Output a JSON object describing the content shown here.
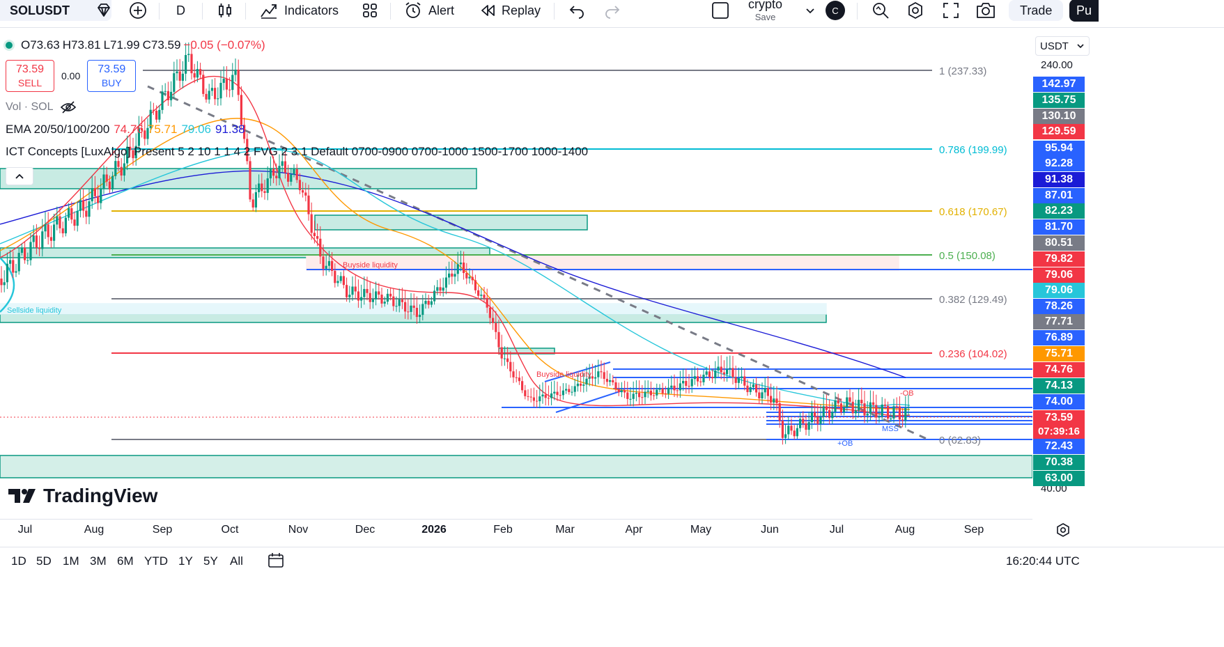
{
  "toolbar": {
    "symbol": "SOLUSDT",
    "interval": "D",
    "indicators_label": "Indicators",
    "alert_label": "Alert",
    "replay_label": "Replay",
    "layout_name": "crypto",
    "layout_save": "Save",
    "avatar_letter": "C",
    "trade_label": "Trade",
    "publish_label": "Pu"
  },
  "legend": {
    "open": "O73.63",
    "high": "H73.81",
    "low": "L71.99",
    "close": "C73.59",
    "change": "−0.05 (−0.07%)",
    "sell_price": "73.59",
    "sell_label": "SELL",
    "spread": "0.00",
    "buy_price": "73.59",
    "buy_label": "BUY",
    "volume": "Vol · SOL",
    "ema_name": "EMA 20/50/100/200",
    "ema_values": [
      "74.76",
      "75.71",
      "79.06",
      "91.38"
    ],
    "ict_text": "ICT Concepts [LuxAlgo] Present 5 2 10 1 1 4 2 FVG 2 3 1 Default 0700-0900 0700-1000 1500-1700 1000-1400"
  },
  "watermark": "TradingView",
  "price_scale": {
    "currency": "USDT",
    "ticks": [
      "240.00",
      "40.00"
    ],
    "labels": [
      {
        "v": "142.97",
        "c": "#2962ff"
      },
      {
        "v": "135.75",
        "c": "#089981"
      },
      {
        "v": "130.10",
        "c": "#787b86"
      },
      {
        "v": "129.59",
        "c": "#f23645"
      },
      {
        "v": "95.94",
        "c": "#2962ff"
      },
      {
        "v": "92.28",
        "c": "#2962ff"
      },
      {
        "v": "91.38",
        "c": "#1b1bd6"
      },
      {
        "v": "87.01",
        "c": "#2962ff"
      },
      {
        "v": "82.23",
        "c": "#089981"
      },
      {
        "v": "81.70",
        "c": "#2962ff"
      },
      {
        "v": "80.51",
        "c": "#787b86"
      },
      {
        "v": "79.82",
        "c": "#f23645"
      },
      {
        "v": "79.06",
        "c": "#f23645"
      },
      {
        "v": "79.06",
        "c": "#26c6da"
      },
      {
        "v": "78.26",
        "c": "#2962ff"
      },
      {
        "v": "77.71",
        "c": "#787b86"
      },
      {
        "v": "76.89",
        "c": "#2962ff"
      },
      {
        "v": "75.71",
        "c": "#ff9800"
      },
      {
        "v": "74.76",
        "c": "#f23645"
      },
      {
        "v": "74.13",
        "c": "#089981"
      },
      {
        "v": "74.00",
        "c": "#2962ff"
      },
      {
        "v": "73.59",
        "c": "#f23645"
      },
      {
        "v": "72.43",
        "c": "#2962ff"
      },
      {
        "v": "70.38",
        "c": "#089981"
      },
      {
        "v": "63.00",
        "c": "#089981"
      }
    ],
    "countdown": "07:39:16"
  },
  "fib_levels": [
    {
      "label": "1 (237.33)",
      "color": "#787b86"
    },
    {
      "label": "0.786 (199.99)",
      "color": "#00bcd4"
    },
    {
      "label": "0.618 (170.67)",
      "color": "#e2b100"
    },
    {
      "label": "0.5 (150.08)",
      "color": "#4caf50"
    },
    {
      "label": "0.382 (129.49)",
      "color": "#787b86"
    },
    {
      "label": "0.236 (104.02)",
      "color": "#f23645"
    },
    {
      "label": "0 (62.83)",
      "color": "#787b86"
    }
  ],
  "annotations": {
    "buyside_1": "Buyside liquidity",
    "buyside_2": "Buyside liquidity",
    "sellside": "Sellside liquidity",
    "minus_ob": "-OB",
    "plus_ob": "+OB",
    "mss": "MSS"
  },
  "time_axis": [
    {
      "label": "Jul",
      "bold": false
    },
    {
      "label": "Aug",
      "bold": false
    },
    {
      "label": "Sep",
      "bold": false
    },
    {
      "label": "Oct",
      "bold": false
    },
    {
      "label": "Nov",
      "bold": false
    },
    {
      "label": "Dec",
      "bold": false
    },
    {
      "label": "2026",
      "bold": true
    },
    {
      "label": "Feb",
      "bold": false
    },
    {
      "label": "Mar",
      "bold": false
    },
    {
      "label": "Apr",
      "bold": false
    },
    {
      "label": "May",
      "bold": false
    },
    {
      "label": "Jun",
      "bold": false
    },
    {
      "label": "Jul",
      "bold": false
    },
    {
      "label": "Aug",
      "bold": false
    },
    {
      "label": "Sep",
      "bold": false
    }
  ],
  "ranges": [
    "1D",
    "5D",
    "1M",
    "3M",
    "6M",
    "YTD",
    "1Y",
    "5Y",
    "All"
  ],
  "clock": "16:20:44 UTC"
}
